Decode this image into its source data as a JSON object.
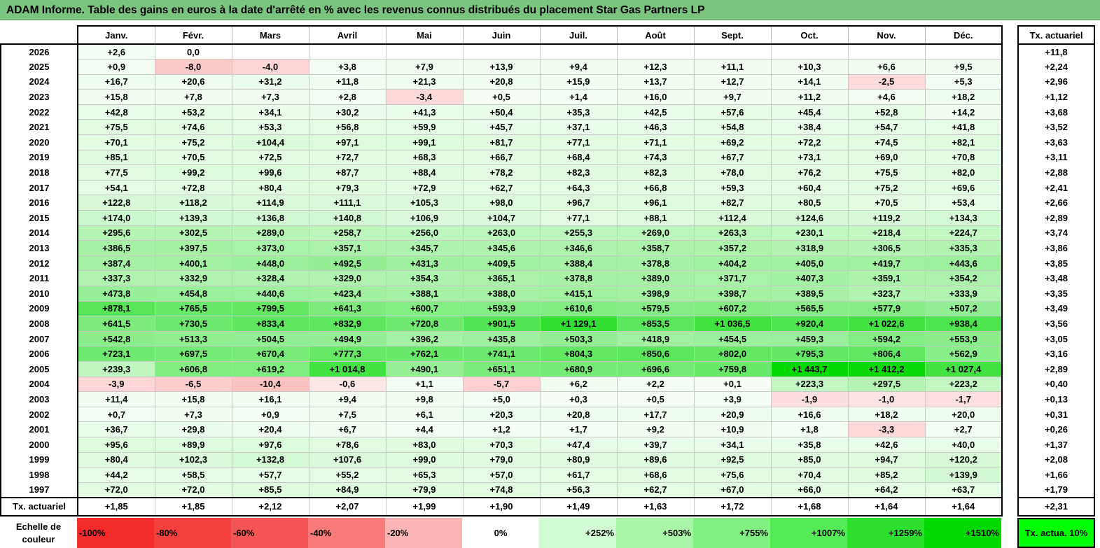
{
  "title": "ADAM Informe. Table des gains en euros à la date d'arrêté en % avec les revenus connus distribués du placement Star Gas Partners LP",
  "chart_data": {
    "type": "table",
    "title": "ADAM Informe. Table des gains en euros à la date d'arrêté en % avec les revenus connus distribués du placement Star Gas Partners LP",
    "columns": [
      "Janv.",
      "Févr.",
      "Mars",
      "Avril",
      "Mai",
      "Juin",
      "Juil.",
      "Août",
      "Sept.",
      "Oct.",
      "Nov.",
      "Déc."
    ],
    "actuarial_header": "Tx. actuariel",
    "rows": [
      {
        "year": "2026",
        "cells": [
          "+2,6",
          "0,0",
          "",
          "",
          "",
          "",
          "",
          "",
          "",
          "",
          "",
          ""
        ],
        "values": [
          2.6,
          0.0,
          null,
          null,
          null,
          null,
          null,
          null,
          null,
          null,
          null,
          null
        ],
        "rate": "+11,8"
      },
      {
        "year": "2025",
        "cells": [
          "+0,9",
          "-8,0",
          "-4,0",
          "+3,8",
          "+7,9",
          "+13,9",
          "+9,4",
          "+12,3",
          "+11,1",
          "+10,3",
          "+6,6",
          "+9,5"
        ],
        "values": [
          0.9,
          -8.0,
          -4.0,
          3.8,
          7.9,
          13.9,
          9.4,
          12.3,
          11.1,
          10.3,
          6.6,
          9.5
        ],
        "rate": "+2,24"
      },
      {
        "year": "2024",
        "cells": [
          "+16,7",
          "+20,6",
          "+31,2",
          "+11,8",
          "+21,3",
          "+20,8",
          "+15,9",
          "+13,7",
          "+12,7",
          "+14,1",
          "-2,5",
          "+5,3"
        ],
        "values": [
          16.7,
          20.6,
          31.2,
          11.8,
          21.3,
          20.8,
          15.9,
          13.7,
          12.7,
          14.1,
          -2.5,
          5.3
        ],
        "rate": "+2,96"
      },
      {
        "year": "2023",
        "cells": [
          "+15,8",
          "+7,8",
          "+7,3",
          "+2,8",
          "-3,4",
          "+0,5",
          "+1,4",
          "+16,0",
          "+9,7",
          "+11,2",
          "+4,6",
          "+18,2"
        ],
        "values": [
          15.8,
          7.8,
          7.3,
          2.8,
          -3.4,
          0.5,
          1.4,
          16.0,
          9.7,
          11.2,
          4.6,
          18.2
        ],
        "rate": "+1,12"
      },
      {
        "year": "2022",
        "cells": [
          "+42,8",
          "+53,2",
          "+34,1",
          "+30,2",
          "+41,3",
          "+50,4",
          "+35,3",
          "+42,5",
          "+57,6",
          "+45,4",
          "+52,8",
          "+14,2"
        ],
        "values": [
          42.8,
          53.2,
          34.1,
          30.2,
          41.3,
          50.4,
          35.3,
          42.5,
          57.6,
          45.4,
          52.8,
          14.2
        ],
        "rate": "+3,68"
      },
      {
        "year": "2021",
        "cells": [
          "+75,5",
          "+74,6",
          "+53,3",
          "+56,8",
          "+59,9",
          "+45,7",
          "+37,1",
          "+46,3",
          "+54,8",
          "+38,4",
          "+54,7",
          "+41,8"
        ],
        "values": [
          75.5,
          74.6,
          53.3,
          56.8,
          59.9,
          45.7,
          37.1,
          46.3,
          54.8,
          38.4,
          54.7,
          41.8
        ],
        "rate": "+3,52"
      },
      {
        "year": "2020",
        "cells": [
          "+70,1",
          "+75,2",
          "+104,4",
          "+97,1",
          "+99,1",
          "+81,7",
          "+77,1",
          "+71,1",
          "+69,2",
          "+72,2",
          "+74,5",
          "+82,1"
        ],
        "values": [
          70.1,
          75.2,
          104.4,
          97.1,
          99.1,
          81.7,
          77.1,
          71.1,
          69.2,
          72.2,
          74.5,
          82.1
        ],
        "rate": "+3,63"
      },
      {
        "year": "2019",
        "cells": [
          "+85,1",
          "+70,5",
          "+72,5",
          "+72,7",
          "+68,3",
          "+66,7",
          "+68,4",
          "+74,3",
          "+67,7",
          "+73,1",
          "+69,0",
          "+70,8"
        ],
        "values": [
          85.1,
          70.5,
          72.5,
          72.7,
          68.3,
          66.7,
          68.4,
          74.3,
          67.7,
          73.1,
          69.0,
          70.8
        ],
        "rate": "+3,11"
      },
      {
        "year": "2018",
        "cells": [
          "+77,5",
          "+99,2",
          "+99,6",
          "+87,7",
          "+88,4",
          "+78,2",
          "+82,3",
          "+82,3",
          "+78,0",
          "+76,2",
          "+75,5",
          "+82,0"
        ],
        "values": [
          77.5,
          99.2,
          99.6,
          87.7,
          88.4,
          78.2,
          82.3,
          82.3,
          78.0,
          76.2,
          75.5,
          82.0
        ],
        "rate": "+2,88"
      },
      {
        "year": "2017",
        "cells": [
          "+54,1",
          "+72,8",
          "+80,4",
          "+79,3",
          "+72,9",
          "+62,7",
          "+64,3",
          "+66,8",
          "+59,3",
          "+60,4",
          "+75,2",
          "+69,6"
        ],
        "values": [
          54.1,
          72.8,
          80.4,
          79.3,
          72.9,
          62.7,
          64.3,
          66.8,
          59.3,
          60.4,
          75.2,
          69.6
        ],
        "rate": "+2,41"
      },
      {
        "year": "2016",
        "cells": [
          "+122,8",
          "+118,2",
          "+114,9",
          "+111,1",
          "+105,3",
          "+98,0",
          "+96,7",
          "+96,1",
          "+82,7",
          "+80,5",
          "+70,5",
          "+53,4"
        ],
        "values": [
          122.8,
          118.2,
          114.9,
          111.1,
          105.3,
          98.0,
          96.7,
          96.1,
          82.7,
          80.5,
          70.5,
          53.4
        ],
        "rate": "+2,66"
      },
      {
        "year": "2015",
        "cells": [
          "+174,0",
          "+139,3",
          "+136,8",
          "+140,8",
          "+106,9",
          "+104,7",
          "+77,1",
          "+88,1",
          "+112,4",
          "+124,6",
          "+119,2",
          "+134,3"
        ],
        "values": [
          174.0,
          139.3,
          136.8,
          140.8,
          106.9,
          104.7,
          77.1,
          88.1,
          112.4,
          124.6,
          119.2,
          134.3
        ],
        "rate": "+2,89"
      },
      {
        "year": "2014",
        "cells": [
          "+295,6",
          "+302,5",
          "+289,0",
          "+258,7",
          "+256,0",
          "+263,0",
          "+255,3",
          "+269,0",
          "+263,3",
          "+230,1",
          "+218,4",
          "+224,7"
        ],
        "values": [
          295.6,
          302.5,
          289.0,
          258.7,
          256.0,
          263.0,
          255.3,
          269.0,
          263.3,
          230.1,
          218.4,
          224.7
        ],
        "rate": "+3,74"
      },
      {
        "year": "2013",
        "cells": [
          "+386,5",
          "+397,5",
          "+373,0",
          "+357,1",
          "+345,7",
          "+345,6",
          "+346,6",
          "+358,7",
          "+357,2",
          "+318,9",
          "+306,5",
          "+335,3"
        ],
        "values": [
          386.5,
          397.5,
          373.0,
          357.1,
          345.7,
          345.6,
          346.6,
          358.7,
          357.2,
          318.9,
          306.5,
          335.3
        ],
        "rate": "+3,86"
      },
      {
        "year": "2012",
        "cells": [
          "+387,4",
          "+400,1",
          "+448,0",
          "+492,5",
          "+431,3",
          "+409,5",
          "+388,4",
          "+378,8",
          "+404,2",
          "+405,0",
          "+419,7",
          "+443,6"
        ],
        "values": [
          387.4,
          400.1,
          448.0,
          492.5,
          431.3,
          409.5,
          388.4,
          378.8,
          404.2,
          405.0,
          419.7,
          443.6
        ],
        "rate": "+3,85"
      },
      {
        "year": "2011",
        "cells": [
          "+337,3",
          "+332,9",
          "+328,4",
          "+329,0",
          "+354,3",
          "+365,1",
          "+378,8",
          "+389,0",
          "+371,7",
          "+407,3",
          "+359,1",
          "+354,2"
        ],
        "values": [
          337.3,
          332.9,
          328.4,
          329.0,
          354.3,
          365.1,
          378.8,
          389.0,
          371.7,
          407.3,
          359.1,
          354.2
        ],
        "rate": "+3,48"
      },
      {
        "year": "2010",
        "cells": [
          "+473,8",
          "+454,8",
          "+440,6",
          "+423,4",
          "+388,1",
          "+388,0",
          "+415,1",
          "+398,9",
          "+398,7",
          "+389,5",
          "+323,7",
          "+333,9"
        ],
        "values": [
          473.8,
          454.8,
          440.6,
          423.4,
          388.1,
          388.0,
          415.1,
          398.9,
          398.7,
          389.5,
          323.7,
          333.9
        ],
        "rate": "+3,35"
      },
      {
        "year": "2009",
        "cells": [
          "+878,1",
          "+765,5",
          "+799,5",
          "+641,3",
          "+600,7",
          "+593,9",
          "+610,6",
          "+579,5",
          "+607,2",
          "+565,5",
          "+577,9",
          "+507,2"
        ],
        "values": [
          878.1,
          765.5,
          799.5,
          641.3,
          600.7,
          593.9,
          610.6,
          579.5,
          607.2,
          565.5,
          577.9,
          507.2
        ],
        "rate": "+3,49"
      },
      {
        "year": "2008",
        "cells": [
          "+641,5",
          "+730,5",
          "+833,4",
          "+832,9",
          "+720,8",
          "+901,5",
          "+1 129,1",
          "+853,5",
          "+1 036,5",
          "+920,4",
          "+1 022,6",
          "+938,4"
        ],
        "values": [
          641.5,
          730.5,
          833.4,
          832.9,
          720.8,
          901.5,
          1129.1,
          853.5,
          1036.5,
          920.4,
          1022.6,
          938.4
        ],
        "rate": "+3,56"
      },
      {
        "year": "2007",
        "cells": [
          "+542,8",
          "+513,3",
          "+504,5",
          "+494,9",
          "+396,2",
          "+435,8",
          "+503,3",
          "+418,9",
          "+454,5",
          "+459,3",
          "+594,2",
          "+553,9"
        ],
        "values": [
          542.8,
          513.3,
          504.5,
          494.9,
          396.2,
          435.8,
          503.3,
          418.9,
          454.5,
          459.3,
          594.2,
          553.9
        ],
        "rate": "+3,05"
      },
      {
        "year": "2006",
        "cells": [
          "+723,1",
          "+697,5",
          "+670,4",
          "+777,3",
          "+762,1",
          "+741,1",
          "+804,3",
          "+850,6",
          "+802,0",
          "+795,3",
          "+806,4",
          "+562,9"
        ],
        "values": [
          723.1,
          697.5,
          670.4,
          777.3,
          762.1,
          741.1,
          804.3,
          850.6,
          802.0,
          795.3,
          806.4,
          562.9
        ],
        "rate": "+3,16"
      },
      {
        "year": "2005",
        "cells": [
          "+239,3",
          "+606,8",
          "+619,2",
          "+1 014,8",
          "+490,1",
          "+651,1",
          "+680,9",
          "+696,6",
          "+759,8",
          "+1 443,7",
          "+1 412,2",
          "+1 027,4"
        ],
        "values": [
          239.3,
          606.8,
          619.2,
          1014.8,
          490.1,
          651.1,
          680.9,
          696.6,
          759.8,
          1443.7,
          1412.2,
          1027.4
        ],
        "rate": "+2,89"
      },
      {
        "year": "2004",
        "cells": [
          "-3,9",
          "-6,5",
          "-10,4",
          "-0,6",
          "+1,1",
          "-5,7",
          "+6,2",
          "+2,2",
          "+0,1",
          "+223,3",
          "+297,5",
          "+223,2"
        ],
        "values": [
          -3.9,
          -6.5,
          -10.4,
          -0.6,
          1.1,
          -5.7,
          6.2,
          2.2,
          0.1,
          223.3,
          297.5,
          223.2
        ],
        "rate": "+0,40"
      },
      {
        "year": "2003",
        "cells": [
          "+11,4",
          "+15,8",
          "+16,1",
          "+9,4",
          "+9,8",
          "+5,0",
          "+0,3",
          "+0,5",
          "+3,9",
          "-1,9",
          "-1,0",
          "-1,7"
        ],
        "values": [
          11.4,
          15.8,
          16.1,
          9.4,
          9.8,
          5.0,
          0.3,
          0.5,
          3.9,
          -1.9,
          -1.0,
          -1.7
        ],
        "rate": "+0,13"
      },
      {
        "year": "2002",
        "cells": [
          "+0,7",
          "+7,3",
          "+0,9",
          "+7,5",
          "+6,1",
          "+20,3",
          "+20,8",
          "+17,7",
          "+20,9",
          "+16,6",
          "+18,2",
          "+20,0"
        ],
        "values": [
          0.7,
          7.3,
          0.9,
          7.5,
          6.1,
          20.3,
          20.8,
          17.7,
          20.9,
          16.6,
          18.2,
          20.0
        ],
        "rate": "+0,31"
      },
      {
        "year": "2001",
        "cells": [
          "+36,7",
          "+29,8",
          "+20,4",
          "+6,7",
          "+4,4",
          "+1,2",
          "+1,7",
          "+9,2",
          "+10,9",
          "+1,8",
          "-3,3",
          "+2,7"
        ],
        "values": [
          36.7,
          29.8,
          20.4,
          6.7,
          4.4,
          1.2,
          1.7,
          9.2,
          10.9,
          1.8,
          -3.3,
          2.7
        ],
        "rate": "+0,26"
      },
      {
        "year": "2000",
        "cells": [
          "+95,6",
          "+89,9",
          "+97,6",
          "+78,6",
          "+83,0",
          "+70,3",
          "+47,4",
          "+39,7",
          "+34,1",
          "+35,8",
          "+42,6",
          "+40,0"
        ],
        "values": [
          95.6,
          89.9,
          97.6,
          78.6,
          83.0,
          70.3,
          47.4,
          39.7,
          34.1,
          35.8,
          42.6,
          40.0
        ],
        "rate": "+1,37"
      },
      {
        "year": "1999",
        "cells": [
          "+80,4",
          "+102,3",
          "+132,8",
          "+107,6",
          "+99,0",
          "+79,0",
          "+80,9",
          "+89,6",
          "+92,5",
          "+85,0",
          "+94,7",
          "+120,2"
        ],
        "values": [
          80.4,
          102.3,
          132.8,
          107.6,
          99.0,
          79.0,
          80.9,
          89.6,
          92.5,
          85.0,
          94.7,
          120.2
        ],
        "rate": "+2,08"
      },
      {
        "year": "1998",
        "cells": [
          "+44,2",
          "+58,5",
          "+57,7",
          "+55,2",
          "+65,3",
          "+57,0",
          "+61,7",
          "+68,6",
          "+75,6",
          "+70,4",
          "+85,2",
          "+139,9"
        ],
        "values": [
          44.2,
          58.5,
          57.7,
          55.2,
          65.3,
          57.0,
          61.7,
          68.6,
          75.6,
          70.4,
          85.2,
          139.9
        ],
        "rate": "+1,66"
      },
      {
        "year": "1997",
        "cells": [
          "+72,0",
          "+72,0",
          "+85,5",
          "+84,9",
          "+79,9",
          "+74,8",
          "+56,3",
          "+62,7",
          "+67,0",
          "+66,0",
          "+64,2",
          "+63,7"
        ],
        "values": [
          72.0,
          72.0,
          85.5,
          84.9,
          79.9,
          74.8,
          56.3,
          62.7,
          67.0,
          66.0,
          64.2,
          63.7
        ],
        "rate": "+1,79"
      }
    ],
    "summary": {
      "label": "Tx. actuariel",
      "cells": [
        "+1,85",
        "+1,85",
        "+2,12",
        "+2,07",
        "+1,99",
        "+1,90",
        "+1,49",
        "+1,63",
        "+1,72",
        "+1,68",
        "+1,64",
        "+1,64"
      ],
      "rate": "+2,31"
    },
    "color_scale": {
      "label": "Echelle de couleur",
      "stops": [
        {
          "label": "-100%",
          "value": -100,
          "color": "#f22b2b"
        },
        {
          "label": "-80%",
          "value": -80,
          "color": "#f43f3f"
        },
        {
          "label": "-60%",
          "value": -60,
          "color": "#f65555"
        },
        {
          "label": "-40%",
          "value": -40,
          "color": "#f97a7a"
        },
        {
          "label": "-20%",
          "value": -20,
          "color": "#fbb5b5"
        },
        {
          "label": "0%",
          "value": 0,
          "color": "#ffffff"
        },
        {
          "label": "+252%",
          "value": 252,
          "color": "#d3fbd3"
        },
        {
          "label": "+503%",
          "value": 503,
          "color": "#a9f6a9"
        },
        {
          "label": "+755%",
          "value": 755,
          "color": "#80f080"
        },
        {
          "label": "+1007%",
          "value": 1007,
          "color": "#55e955"
        },
        {
          "label": "+1259%",
          "value": 1259,
          "color": "#2ee02e"
        },
        {
          "label": "+1510%",
          "value": 1510,
          "color": "#00d800"
        }
      ],
      "actuarial_swatch": {
        "label": "Tx. actua. 10%",
        "color": "#00ff00"
      }
    }
  }
}
